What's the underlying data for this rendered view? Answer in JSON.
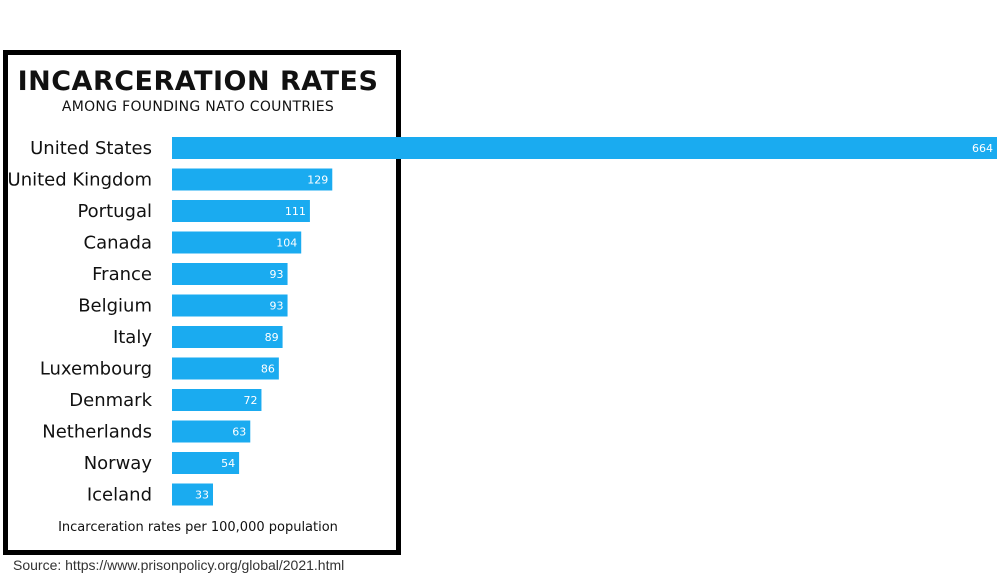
{
  "chart_data": {
    "type": "bar",
    "orientation": "horizontal",
    "title": "INCARCERATION RATES",
    "subtitle": "AMONG FOUNDING NATO COUNTRIES",
    "categories": [
      "United States",
      "United Kingdom",
      "Portugal",
      "Canada",
      "France",
      "Belgium",
      "Italy",
      "Luxembourg",
      "Denmark",
      "Netherlands",
      "Norway",
      "Iceland"
    ],
    "values": [
      664,
      129,
      111,
      104,
      93,
      93,
      89,
      86,
      72,
      63,
      54,
      33
    ],
    "data_labels": [
      "664",
      "129",
      "111",
      "104",
      "93",
      "93",
      "89",
      "86",
      "72",
      "63",
      "54",
      "33"
    ],
    "footnote": "Incarceration rates per 100,000 population",
    "bar_color": "#1aabf0",
    "grid": false,
    "legend": "none"
  },
  "source_text": "Source: https://www.prisonpolicy.org/global/2021.html"
}
